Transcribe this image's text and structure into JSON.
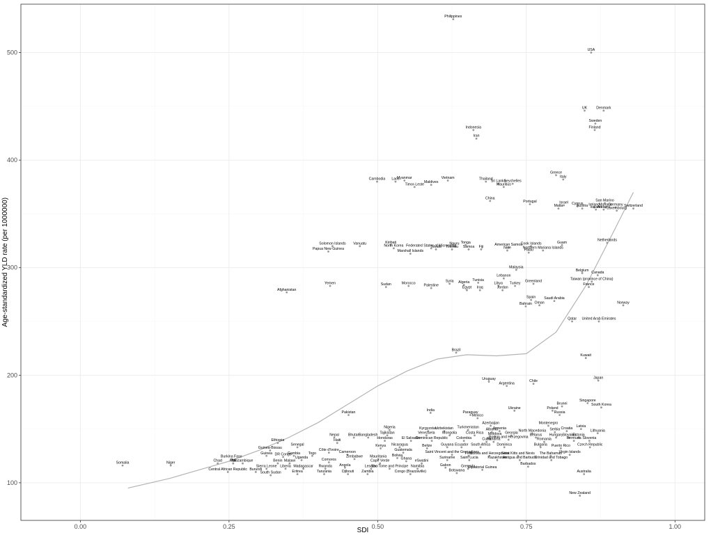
{
  "chart_data": {
    "type": "scatter",
    "xlabel": "SDI",
    "ylabel": "Age-standardized YLD rate (per 1000000)",
    "xlim": [
      -0.1,
      1.05
    ],
    "ylim": [
      65,
      545
    ],
    "x_ticks": [
      0.0,
      0.25,
      0.5,
      0.75,
      1.0
    ],
    "x_tick_labels": [
      "0.00",
      "0.25",
      "0.50",
      "0.75",
      "1.00"
    ],
    "y_ticks": [
      100,
      200,
      300,
      400,
      500
    ],
    "y_tick_labels": [
      "100",
      "200",
      "300",
      "400",
      "500"
    ],
    "grid": true,
    "point_color": "#999999",
    "trend_color": "#b3b3b3",
    "points": [
      {
        "name": "Philippines",
        "x": 0.627,
        "y": 531
      },
      {
        "name": "USA",
        "x": 0.859,
        "y": 500
      },
      {
        "name": "UK",
        "x": 0.848,
        "y": 446
      },
      {
        "name": "Denmark",
        "x": 0.88,
        "y": 446
      },
      {
        "name": "Sweden",
        "x": 0.866,
        "y": 434
      },
      {
        "name": "Finland",
        "x": 0.865,
        "y": 428
      },
      {
        "name": "Indonesia",
        "x": 0.661,
        "y": 428
      },
      {
        "name": "Iran",
        "x": 0.666,
        "y": 420
      },
      {
        "name": "Greece",
        "x": 0.8,
        "y": 386
      },
      {
        "name": "Italy",
        "x": 0.812,
        "y": 382
      },
      {
        "name": "Cambodia",
        "x": 0.499,
        "y": 380
      },
      {
        "name": "Laos",
        "x": 0.53,
        "y": 380
      },
      {
        "name": "Myanmar",
        "x": 0.545,
        "y": 381
      },
      {
        "name": "Timor-Leste",
        "x": 0.562,
        "y": 375
      },
      {
        "name": "Maldives",
        "x": 0.59,
        "y": 377
      },
      {
        "name": "Vietnam",
        "x": 0.618,
        "y": 381
      },
      {
        "name": "Thailand",
        "x": 0.682,
        "y": 380
      },
      {
        "name": "Sri Lanka",
        "x": 0.703,
        "y": 378
      },
      {
        "name": "Seychelles",
        "x": 0.727,
        "y": 378
      },
      {
        "name": "Mauritius",
        "x": 0.712,
        "y": 375
      },
      {
        "name": "China",
        "x": 0.689,
        "y": 362
      },
      {
        "name": "Portugal",
        "x": 0.756,
        "y": 359
      },
      {
        "name": "Israel",
        "x": 0.813,
        "y": 358
      },
      {
        "name": "Malta",
        "x": 0.804,
        "y": 355
      },
      {
        "name": "Cyprus",
        "x": 0.836,
        "y": 357
      },
      {
        "name": "Austria",
        "x": 0.844,
        "y": 355
      },
      {
        "name": "Ireland",
        "x": 0.864,
        "y": 356
      },
      {
        "name": "Iceland",
        "x": 0.867,
        "y": 354
      },
      {
        "name": "San Marino",
        "x": 0.882,
        "y": 360
      },
      {
        "name": "Monaco",
        "x": 0.883,
        "y": 356
      },
      {
        "name": "Germany",
        "x": 0.9,
        "y": 356
      },
      {
        "name": "Andorra",
        "x": 0.88,
        "y": 354
      },
      {
        "name": "Luxembourg",
        "x": 0.902,
        "y": 353
      },
      {
        "name": "Switzerland",
        "x": 0.93,
        "y": 355
      },
      {
        "name": "Solomon Islands",
        "x": 0.424,
        "y": 320
      },
      {
        "name": "Papua New Guinea",
        "x": 0.417,
        "y": 315
      },
      {
        "name": "Vanuatu",
        "x": 0.47,
        "y": 320
      },
      {
        "name": "Kiribati",
        "x": 0.522,
        "y": 321
      },
      {
        "name": "North Korea",
        "x": 0.527,
        "y": 318
      },
      {
        "name": "Federated States of Micronesia",
        "x": 0.59,
        "y": 318
      },
      {
        "name": "Marshall Islands",
        "x": 0.555,
        "y": 313
      },
      {
        "name": "Tuvalu",
        "x": 0.598,
        "y": 317
      },
      {
        "name": "Nauru",
        "x": 0.629,
        "y": 320
      },
      {
        "name": "Tonga",
        "x": 0.648,
        "y": 321
      },
      {
        "name": "Tokelau",
        "x": 0.625,
        "y": 317
      },
      {
        "name": "Samoa",
        "x": 0.653,
        "y": 317
      },
      {
        "name": "Fiji",
        "x": 0.674,
        "y": 317
      },
      {
        "name": "American Samoa",
        "x": 0.72,
        "y": 319
      },
      {
        "name": "Niue",
        "x": 0.718,
        "y": 316
      },
      {
        "name": "Cook Islands",
        "x": 0.758,
        "y": 320
      },
      {
        "name": "Palau",
        "x": 0.754,
        "y": 314
      },
      {
        "name": "Northern Mariana Islands",
        "x": 0.778,
        "y": 316
      },
      {
        "name": "Guam",
        "x": 0.81,
        "y": 321
      },
      {
        "name": "Netherlands",
        "x": 0.886,
        "y": 323
      },
      {
        "name": "Malaysia",
        "x": 0.733,
        "y": 298
      },
      {
        "name": "Belgium",
        "x": 0.844,
        "y": 295
      },
      {
        "name": "Canada",
        "x": 0.87,
        "y": 293
      },
      {
        "name": "Lebanon",
        "x": 0.712,
        "y": 290
      },
      {
        "name": "Greenland",
        "x": 0.762,
        "y": 285
      },
      {
        "name": "Taiwan (province of China)",
        "x": 0.86,
        "y": 287
      },
      {
        "name": "Yemen",
        "x": 0.42,
        "y": 283
      },
      {
        "name": "Afghanistan",
        "x": 0.347,
        "y": 277
      },
      {
        "name": "Sudan",
        "x": 0.514,
        "y": 282
      },
      {
        "name": "Morocco",
        "x": 0.552,
        "y": 283
      },
      {
        "name": "Palestine",
        "x": 0.59,
        "y": 281
      },
      {
        "name": "Syria",
        "x": 0.621,
        "y": 285
      },
      {
        "name": "Algeria",
        "x": 0.645,
        "y": 284
      },
      {
        "name": "Tunisia",
        "x": 0.669,
        "y": 286
      },
      {
        "name": "Egypt",
        "x": 0.65,
        "y": 279
      },
      {
        "name": "Iraq",
        "x": 0.672,
        "y": 279
      },
      {
        "name": "Libya",
        "x": 0.703,
        "y": 283
      },
      {
        "name": "Turkey",
        "x": 0.731,
        "y": 283
      },
      {
        "name": "Jordan",
        "x": 0.71,
        "y": 279
      },
      {
        "name": "France",
        "x": 0.855,
        "y": 282
      },
      {
        "name": "Spain",
        "x": 0.758,
        "y": 270
      },
      {
        "name": "Saudi Arabia",
        "x": 0.797,
        "y": 269
      },
      {
        "name": "Bahrain",
        "x": 0.749,
        "y": 264
      },
      {
        "name": "Oman",
        "x": 0.772,
        "y": 265
      },
      {
        "name": "Norway",
        "x": 0.913,
        "y": 265
      },
      {
        "name": "Qatar",
        "x": 0.827,
        "y": 250
      },
      {
        "name": "United Arab Emirates",
        "x": 0.872,
        "y": 250
      },
      {
        "name": "Brazil",
        "x": 0.632,
        "y": 221
      },
      {
        "name": "Kuwait",
        "x": 0.85,
        "y": 216
      },
      {
        "name": "Japan",
        "x": 0.871,
        "y": 195
      },
      {
        "name": "Uruguay",
        "x": 0.687,
        "y": 194
      },
      {
        "name": "Argentina",
        "x": 0.717,
        "y": 190
      },
      {
        "name": "Chile",
        "x": 0.762,
        "y": 192
      },
      {
        "name": "Singapore",
        "x": 0.853,
        "y": 174
      },
      {
        "name": "South Korea",
        "x": 0.876,
        "y": 170
      },
      {
        "name": "Brunei",
        "x": 0.81,
        "y": 171
      },
      {
        "name": "Poland",
        "x": 0.794,
        "y": 167
      },
      {
        "name": "Russia",
        "x": 0.806,
        "y": 163
      },
      {
        "name": "Ukraine",
        "x": 0.73,
        "y": 167
      },
      {
        "name": "Pakistan",
        "x": 0.451,
        "y": 163
      },
      {
        "name": "India",
        "x": 0.589,
        "y": 165
      },
      {
        "name": "Paraguay",
        "x": 0.656,
        "y": 163
      },
      {
        "name": "Mexico",
        "x": 0.668,
        "y": 160
      },
      {
        "name": "Azerbaijan",
        "x": 0.69,
        "y": 153
      },
      {
        "name": "Montenegro",
        "x": 0.787,
        "y": 153
      },
      {
        "name": "Nigeria",
        "x": 0.52,
        "y": 149
      },
      {
        "name": "Tajikistan",
        "x": 0.516,
        "y": 144
      },
      {
        "name": "Kyrgyzstan",
        "x": 0.585,
        "y": 148
      },
      {
        "name": "Uzbekistan",
        "x": 0.612,
        "y": 148
      },
      {
        "name": "Turkmenistan",
        "x": 0.652,
        "y": 149
      },
      {
        "name": "Armenia",
        "x": 0.705,
        "y": 148
      },
      {
        "name": "Albania",
        "x": 0.692,
        "y": 147
      },
      {
        "name": "Latvia",
        "x": 0.842,
        "y": 150
      },
      {
        "name": "Serbia",
        "x": 0.798,
        "y": 147
      },
      {
        "name": "Croatia",
        "x": 0.818,
        "y": 148
      },
      {
        "name": "Lithuania",
        "x": 0.87,
        "y": 146
      },
      {
        "name": "Estonia",
        "x": 0.838,
        "y": 142
      },
      {
        "name": "Venezuela",
        "x": 0.582,
        "y": 144
      },
      {
        "name": "Mongolia",
        "x": 0.621,
        "y": 144
      },
      {
        "name": "Costa Rica",
        "x": 0.663,
        "y": 144
      },
      {
        "name": "Moldova",
        "x": 0.697,
        "y": 143
      },
      {
        "name": "Georgia",
        "x": 0.725,
        "y": 144
      },
      {
        "name": "North Macedonia",
        "x": 0.76,
        "y": 146
      },
      {
        "name": "Belarus",
        "x": 0.766,
        "y": 142
      },
      {
        "name": "Hungary",
        "x": 0.8,
        "y": 142
      },
      {
        "name": "Slovakia",
        "x": 0.822,
        "y": 142
      },
      {
        "name": "Bosnia and Herzegovina",
        "x": 0.72,
        "y": 140
      },
      {
        "name": "Nepal",
        "x": 0.427,
        "y": 142
      },
      {
        "name": "Bhutan",
        "x": 0.46,
        "y": 142
      },
      {
        "name": "Bangladesh",
        "x": 0.484,
        "y": 142
      },
      {
        "name": "Ethiopia",
        "x": 0.332,
        "y": 137
      },
      {
        "name": "Haiti",
        "x": 0.432,
        "y": 137
      },
      {
        "name": "Honduras",
        "x": 0.512,
        "y": 139
      },
      {
        "name": "El Salvador",
        "x": 0.556,
        "y": 139
      },
      {
        "name": "Dominican Republic",
        "x": 0.591,
        "y": 139
      },
      {
        "name": "Colombia",
        "x": 0.645,
        "y": 139
      },
      {
        "name": "Cuba",
        "x": 0.683,
        "y": 138
      },
      {
        "name": "Panama",
        "x": 0.695,
        "y": 138
      },
      {
        "name": "Romania",
        "x": 0.78,
        "y": 138
      },
      {
        "name": "Bermuda",
        "x": 0.83,
        "y": 139
      },
      {
        "name": "Slovenia",
        "x": 0.856,
        "y": 139
      },
      {
        "name": "Czech Republic",
        "x": 0.857,
        "y": 133
      },
      {
        "name": "Guinea-Bissau",
        "x": 0.319,
        "y": 130
      },
      {
        "name": "Senegal",
        "x": 0.365,
        "y": 133
      },
      {
        "name": "Kenya",
        "x": 0.505,
        "y": 132
      },
      {
        "name": "Nicaragua",
        "x": 0.537,
        "y": 133
      },
      {
        "name": "Belize",
        "x": 0.583,
        "y": 132
      },
      {
        "name": "Guyana",
        "x": 0.617,
        "y": 133
      },
      {
        "name": "Ecuador",
        "x": 0.641,
        "y": 133
      },
      {
        "name": "South Africa",
        "x": 0.673,
        "y": 133
      },
      {
        "name": "Dominica",
        "x": 0.713,
        "y": 133
      },
      {
        "name": "Bulgaria",
        "x": 0.774,
        "y": 133
      },
      {
        "name": "Puerto Rico",
        "x": 0.808,
        "y": 132
      },
      {
        "name": "Côte d'Ivoire",
        "x": 0.418,
        "y": 128
      },
      {
        "name": "Guatemala",
        "x": 0.543,
        "y": 128
      },
      {
        "name": "Saint Vincent and the Grenadines",
        "x": 0.625,
        "y": 126
      },
      {
        "name": "Peru",
        "x": 0.653,
        "y": 125
      },
      {
        "name": "Bolivia and Herzegovina",
        "x": 0.688,
        "y": 125
      },
      {
        "name": "Saint Kitts and Nevis",
        "x": 0.736,
        "y": 125
      },
      {
        "name": "The Bahamas",
        "x": 0.791,
        "y": 125
      },
      {
        "name": "Virgin Islands",
        "x": 0.823,
        "y": 126
      },
      {
        "name": "Guinea",
        "x": 0.313,
        "y": 125
      },
      {
        "name": "DR Congo",
        "x": 0.341,
        "y": 124
      },
      {
        "name": "Gambia",
        "x": 0.359,
        "y": 125
      },
      {
        "name": "Togo",
        "x": 0.39,
        "y": 125
      },
      {
        "name": "Cameroon",
        "x": 0.449,
        "y": 126
      },
      {
        "name": "Bolivia",
        "x": 0.533,
        "y": 123
      },
      {
        "name": "Burkina Faso",
        "x": 0.254,
        "y": 122
      },
      {
        "name": "Uganda",
        "x": 0.372,
        "y": 121
      },
      {
        "name": "Zimbabwe",
        "x": 0.461,
        "y": 122
      },
      {
        "name": "Mauritania",
        "x": 0.501,
        "y": 122
      },
      {
        "name": "Ghana",
        "x": 0.548,
        "y": 120
      },
      {
        "name": "Suriname",
        "x": 0.617,
        "y": 121
      },
      {
        "name": "Saint Lucia",
        "x": 0.654,
        "y": 121
      },
      {
        "name": "Kazakhstan",
        "x": 0.701,
        "y": 121
      },
      {
        "name": "Antigua and Barbuda",
        "x": 0.739,
        "y": 121
      },
      {
        "name": "Trinidad and Tobago",
        "x": 0.792,
        "y": 121
      },
      {
        "name": "Chad",
        "x": 0.231,
        "y": 118
      },
      {
        "name": "Mali",
        "x": 0.257,
        "y": 118
      },
      {
        "name": "Mozambique",
        "x": 0.273,
        "y": 118
      },
      {
        "name": "Benin",
        "x": 0.332,
        "y": 118
      },
      {
        "name": "Malawi",
        "x": 0.352,
        "y": 118
      },
      {
        "name": "Comoros",
        "x": 0.418,
        "y": 119
      },
      {
        "name": "Cape Verde",
        "x": 0.504,
        "y": 118
      },
      {
        "name": "eSwatini",
        "x": 0.574,
        "y": 118
      },
      {
        "name": "Somalia",
        "x": 0.071,
        "y": 116
      },
      {
        "name": "Niger",
        "x": 0.152,
        "y": 116
      },
      {
        "name": "Sierra Leone",
        "x": 0.313,
        "y": 113
      },
      {
        "name": "Liberia",
        "x": 0.345,
        "y": 113
      },
      {
        "name": "Madagascar",
        "x": 0.375,
        "y": 113
      },
      {
        "name": "Rwanda",
        "x": 0.412,
        "y": 113
      },
      {
        "name": "Angola",
        "x": 0.445,
        "y": 114
      },
      {
        "name": "Lesotho",
        "x": 0.489,
        "y": 113
      },
      {
        "name": "Sao Tome and Principe",
        "x": 0.52,
        "y": 113
      },
      {
        "name": "Namibia",
        "x": 0.567,
        "y": 113
      },
      {
        "name": "Gabon",
        "x": 0.614,
        "y": 114
      },
      {
        "name": "Grenada",
        "x": 0.652,
        "y": 113
      },
      {
        "name": "Equatorial Guinea",
        "x": 0.676,
        "y": 112
      },
      {
        "name": "Barbados",
        "x": 0.753,
        "y": 115
      },
      {
        "name": "Central African Republic",
        "x": 0.248,
        "y": 110
      },
      {
        "name": "Burundi",
        "x": 0.295,
        "y": 110
      },
      {
        "name": "Eritrea",
        "x": 0.365,
        "y": 108
      },
      {
        "name": "Tanzania",
        "x": 0.41,
        "y": 108
      },
      {
        "name": "Djibouti",
        "x": 0.45,
        "y": 108
      },
      {
        "name": "Zambia",
        "x": 0.483,
        "y": 108
      },
      {
        "name": "Congo (Brazzaville)",
        "x": 0.555,
        "y": 108
      },
      {
        "name": "Botswana",
        "x": 0.633,
        "y": 109
      },
      {
        "name": "South Sudan",
        "x": 0.32,
        "y": 107
      },
      {
        "name": "Australia",
        "x": 0.847,
        "y": 108
      },
      {
        "name": "New Zealand",
        "x": 0.84,
        "y": 88
      }
    ],
    "trend": {
      "x": [
        0.08,
        0.15,
        0.2,
        0.25,
        0.3,
        0.35,
        0.4,
        0.45,
        0.5,
        0.55,
        0.6,
        0.65,
        0.7,
        0.75,
        0.8,
        0.85,
        0.9,
        0.93
      ],
      "y": [
        95,
        104,
        112,
        120,
        130,
        142,
        156,
        173,
        190,
        204,
        215,
        219,
        218,
        220,
        240,
        283,
        337,
        370
      ]
    }
  }
}
